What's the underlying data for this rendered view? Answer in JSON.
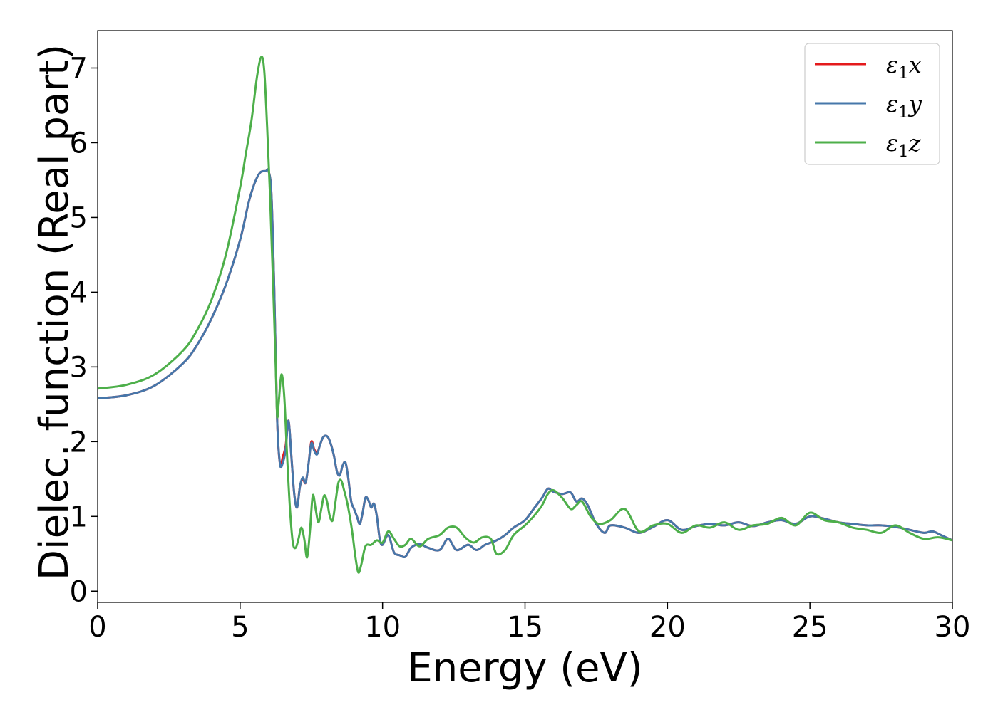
{
  "chart_data": {
    "type": "line",
    "title": "",
    "xlabel": "Energy (eV)",
    "ylabel": "Dielec. function (Real part)",
    "xlim": [
      0,
      30
    ],
    "ylim": [
      -0.15,
      7.5
    ],
    "xticks": [
      0,
      5,
      10,
      15,
      20,
      25,
      30
    ],
    "yticks": [
      0,
      1,
      2,
      3,
      4,
      5,
      6,
      7
    ],
    "grid": false,
    "legend_position": "top-right",
    "series": [
      {
        "name": "ε₁x",
        "legend_base": "ε",
        "legend_sub": "1",
        "legend_suffix": "x",
        "color": "#e41a1c",
        "x": [
          0,
          1,
          2,
          3,
          3.5,
          4,
          4.5,
          5,
          5.3,
          5.5,
          5.7,
          5.9,
          6.0,
          6.1,
          6.2,
          6.3,
          6.4,
          6.5,
          6.6,
          6.7,
          6.8,
          6.9,
          7.0,
          7.1,
          7.2,
          7.3,
          7.4,
          7.5,
          7.6,
          7.7,
          7.8,
          7.9,
          8.0,
          8.1,
          8.2,
          8.3,
          8.4,
          8.5,
          8.6,
          8.7,
          8.8,
          8.9,
          9.0,
          9.1,
          9.2,
          9.3,
          9.4,
          9.5,
          9.6,
          9.7,
          9.8,
          9.9,
          10.0,
          10.2,
          10.4,
          10.6,
          10.8,
          11.0,
          11.3,
          11.6,
          12.0,
          12.3,
          12.6,
          13.0,
          13.3,
          13.6,
          14.0,
          14.3,
          14.6,
          15.0,
          15.3,
          15.6,
          15.8,
          16.0,
          16.3,
          16.6,
          16.8,
          17.0,
          17.2,
          17.5,
          17.8,
          18.0,
          18.5,
          19.0,
          19.5,
          20.0,
          20.5,
          21.0,
          21.5,
          22.0,
          22.5,
          23.0,
          23.5,
          24.0,
          24.5,
          25.0,
          25.5,
          26.0,
          26.5,
          27.0,
          27.5,
          28.0,
          28.5,
          29.0,
          29.3,
          29.6,
          30.0
        ],
        "y": [
          2.58,
          2.62,
          2.75,
          3.05,
          3.3,
          3.65,
          4.1,
          4.7,
          5.2,
          5.45,
          5.6,
          5.62,
          5.62,
          5.3,
          4.0,
          2.3,
          1.7,
          1.8,
          1.95,
          2.28,
          1.8,
          1.3,
          1.12,
          1.4,
          1.5,
          1.45,
          1.7,
          2.0,
          1.9,
          1.85,
          1.95,
          2.05,
          2.08,
          2.05,
          1.95,
          1.8,
          1.6,
          1.55,
          1.68,
          1.72,
          1.5,
          1.2,
          1.1,
          1.0,
          0.9,
          1.05,
          1.25,
          1.22,
          1.12,
          1.17,
          1.0,
          0.7,
          0.62,
          0.75,
          0.52,
          0.48,
          0.46,
          0.58,
          0.63,
          0.58,
          0.55,
          0.7,
          0.55,
          0.62,
          0.55,
          0.62,
          0.68,
          0.75,
          0.85,
          0.95,
          1.1,
          1.25,
          1.37,
          1.33,
          1.3,
          1.32,
          1.2,
          1.24,
          1.15,
          0.9,
          0.78,
          0.88,
          0.85,
          0.78,
          0.86,
          0.95,
          0.82,
          0.87,
          0.9,
          0.88,
          0.92,
          0.87,
          0.92,
          0.95,
          0.9,
          1.0,
          0.97,
          0.92,
          0.9,
          0.88,
          0.88,
          0.86,
          0.82,
          0.78,
          0.8,
          0.75,
          0.68
        ]
      },
      {
        "name": "ε₁y",
        "legend_base": "ε",
        "legend_sub": "1",
        "legend_suffix": "y",
        "color": "#4677aa",
        "x": [
          0,
          1,
          2,
          3,
          3.5,
          4,
          4.5,
          5,
          5.3,
          5.5,
          5.7,
          5.9,
          6.0,
          6.1,
          6.2,
          6.3,
          6.4,
          6.5,
          6.6,
          6.7,
          6.8,
          6.9,
          7.0,
          7.1,
          7.2,
          7.3,
          7.4,
          7.5,
          7.6,
          7.7,
          7.8,
          7.9,
          8.0,
          8.1,
          8.2,
          8.3,
          8.4,
          8.5,
          8.6,
          8.7,
          8.8,
          8.9,
          9.0,
          9.1,
          9.2,
          9.3,
          9.4,
          9.5,
          9.6,
          9.7,
          9.8,
          9.9,
          10.0,
          10.2,
          10.4,
          10.6,
          10.8,
          11.0,
          11.3,
          11.6,
          12.0,
          12.3,
          12.6,
          13.0,
          13.3,
          13.6,
          14.0,
          14.3,
          14.6,
          15.0,
          15.3,
          15.6,
          15.8,
          16.0,
          16.3,
          16.6,
          16.8,
          17.0,
          17.2,
          17.5,
          17.8,
          18.0,
          18.5,
          19.0,
          19.5,
          20.0,
          20.5,
          21.0,
          21.5,
          22.0,
          22.5,
          23.0,
          23.5,
          24.0,
          24.5,
          25.0,
          25.5,
          26.0,
          26.5,
          27.0,
          27.5,
          28.0,
          28.5,
          29.0,
          29.3,
          29.6,
          30.0
        ],
        "y": [
          2.58,
          2.62,
          2.75,
          3.05,
          3.3,
          3.65,
          4.1,
          4.7,
          5.2,
          5.45,
          5.6,
          5.62,
          5.62,
          5.3,
          4.0,
          2.3,
          1.7,
          1.72,
          1.9,
          2.28,
          1.8,
          1.3,
          1.12,
          1.4,
          1.52,
          1.45,
          1.7,
          1.98,
          1.88,
          1.83,
          1.95,
          2.05,
          2.08,
          2.05,
          1.95,
          1.8,
          1.6,
          1.55,
          1.68,
          1.72,
          1.5,
          1.2,
          1.1,
          1.0,
          0.9,
          1.05,
          1.25,
          1.22,
          1.12,
          1.17,
          1.0,
          0.7,
          0.62,
          0.75,
          0.52,
          0.48,
          0.46,
          0.58,
          0.63,
          0.58,
          0.55,
          0.7,
          0.55,
          0.62,
          0.55,
          0.62,
          0.68,
          0.75,
          0.85,
          0.95,
          1.1,
          1.25,
          1.37,
          1.33,
          1.3,
          1.32,
          1.2,
          1.24,
          1.15,
          0.9,
          0.78,
          0.88,
          0.85,
          0.78,
          0.86,
          0.95,
          0.82,
          0.87,
          0.9,
          0.88,
          0.92,
          0.87,
          0.92,
          0.95,
          0.9,
          1.0,
          0.97,
          0.92,
          0.9,
          0.88,
          0.88,
          0.86,
          0.82,
          0.78,
          0.8,
          0.75,
          0.68
        ]
      },
      {
        "name": "ε₁z",
        "legend_base": "ε",
        "legend_sub": "1",
        "legend_suffix": "z",
        "color": "#4daf4a",
        "x": [
          0,
          1,
          2,
          3,
          3.5,
          4,
          4.5,
          5,
          5.2,
          5.4,
          5.6,
          5.75,
          5.85,
          5.95,
          6.05,
          6.15,
          6.25,
          6.3,
          6.35,
          6.45,
          6.55,
          6.65,
          6.75,
          6.85,
          6.95,
          7.05,
          7.15,
          7.25,
          7.35,
          7.45,
          7.55,
          7.65,
          7.75,
          7.85,
          7.95,
          8.05,
          8.15,
          8.25,
          8.35,
          8.45,
          8.55,
          8.65,
          8.75,
          8.85,
          8.95,
          9.05,
          9.15,
          9.25,
          9.4,
          9.6,
          9.8,
          10.0,
          10.2,
          10.4,
          10.6,
          10.8,
          11.0,
          11.3,
          11.6,
          12.0,
          12.3,
          12.6,
          12.9,
          13.2,
          13.5,
          13.8,
          14.0,
          14.3,
          14.6,
          15.0,
          15.3,
          15.6,
          15.8,
          16.0,
          16.3,
          16.6,
          16.8,
          17.0,
          17.3,
          17.6,
          18.0,
          18.5,
          19.0,
          19.5,
          20.0,
          20.5,
          21.0,
          21.5,
          22.0,
          22.5,
          23.0,
          23.5,
          24.0,
          24.5,
          25.0,
          25.5,
          26.0,
          26.5,
          27.0,
          27.5,
          28.0,
          28.5,
          29.0,
          29.5,
          30.0
        ],
        "y": [
          2.71,
          2.76,
          2.9,
          3.22,
          3.5,
          3.9,
          4.5,
          5.4,
          5.85,
          6.3,
          6.9,
          7.15,
          6.95,
          6.2,
          5.3,
          4.2,
          3.0,
          2.35,
          2.5,
          2.9,
          2.6,
          1.8,
          1.1,
          0.65,
          0.58,
          0.7,
          0.85,
          0.7,
          0.45,
          0.8,
          1.28,
          1.1,
          0.92,
          1.1,
          1.28,
          1.2,
          1.0,
          0.95,
          1.2,
          1.45,
          1.48,
          1.35,
          1.2,
          1.0,
          0.75,
          0.45,
          0.25,
          0.35,
          0.6,
          0.62,
          0.68,
          0.65,
          0.8,
          0.7,
          0.6,
          0.62,
          0.7,
          0.6,
          0.7,
          0.75,
          0.85,
          0.85,
          0.72,
          0.65,
          0.72,
          0.7,
          0.5,
          0.55,
          0.75,
          0.88,
          1.0,
          1.15,
          1.3,
          1.35,
          1.25,
          1.1,
          1.15,
          1.2,
          1.0,
          0.9,
          0.95,
          1.1,
          0.8,
          0.88,
          0.9,
          0.78,
          0.88,
          0.85,
          0.92,
          0.82,
          0.88,
          0.9,
          0.98,
          0.88,
          1.05,
          0.95,
          0.92,
          0.85,
          0.82,
          0.78,
          0.88,
          0.78,
          0.7,
          0.72,
          0.68
        ]
      }
    ]
  }
}
